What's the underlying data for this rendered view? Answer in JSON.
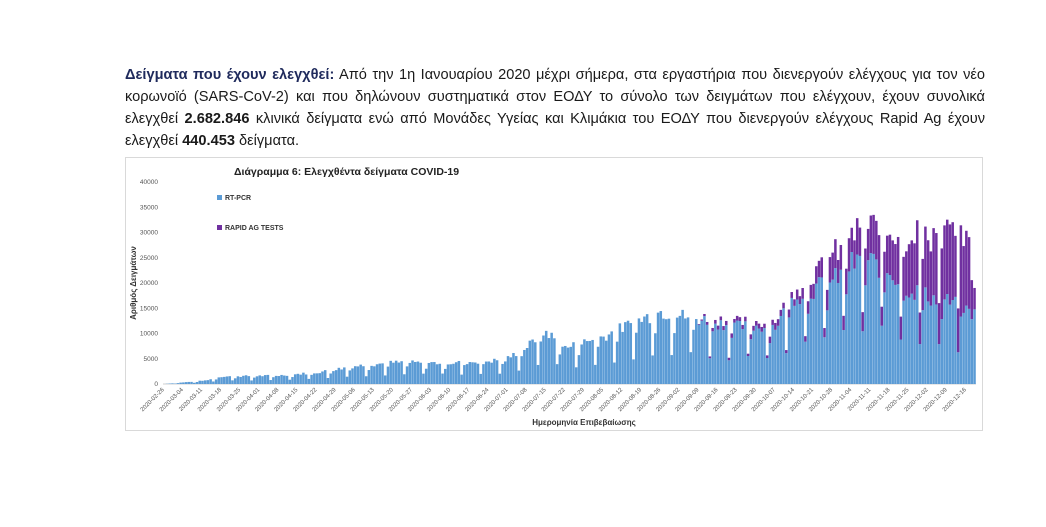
{
  "paragraph": {
    "lead": "Δείγματα που έχουν ελεγχθεί:",
    "text1": " Από την 1η Ιανουαρίου 2020 μέχρι σήμερα, στα εργαστήρια που διενεργούν ελέγχους για τον νέο κορωνοϊό (SARS-CoV-2) και που δηλώνουν συστηματικά στον ΕΟΔΥ το σύνολο των δειγμάτων που ελέγχουν, έχουν συνολικά ελεγχθεί ",
    "total_pcr": "2.682.846",
    "text2": " κλινικά δείγματα ενώ από Μονάδες Υγείας και Κλιμάκια του ΕΟΔΥ που διενεργούν ελέγχους Rapid Ag έχουν ελεγχθεί ",
    "total_rapid": "440.453",
    "text3": " δείγματα."
  },
  "colors": {
    "pcr": "#5b9bd5",
    "rapid": "#7030a0"
  },
  "chart_data": {
    "type": "bar",
    "stacked": true,
    "title": "Διάγραμμα 6: Ελεγχθέντα δείγματα COVID-19",
    "xlabel": "Ημερομηνία Επιβεβαίωσης",
    "ylabel": "Αριθμός Δειγμάτων",
    "ylim": [
      0,
      40000
    ],
    "yticks": [
      0,
      5000,
      10000,
      15000,
      20000,
      25000,
      30000,
      35000,
      40000
    ],
    "legend_position": "top-left",
    "x_start": "2020-02-26",
    "x_end": "2020-12-19",
    "xticks": [
      "2020-02-26",
      "2020-03-04",
      "2020-03-11",
      "2020-03-18",
      "2020-03-25",
      "2020-04-01",
      "2020-04-08",
      "2020-04-15",
      "2020-04-22",
      "2020-04-29",
      "2020-05-06",
      "2020-05-13",
      "2020-05-20",
      "2020-05-27",
      "2020-06-03",
      "2020-06-10",
      "2020-06-17",
      "2020-06-24",
      "2020-07-01",
      "2020-07-08",
      "2020-07-15",
      "2020-07-22",
      "2020-07-29",
      "2020-08-05",
      "2020-08-12",
      "2020-08-19",
      "2020-08-26",
      "2020-09-02",
      "2020-09-09",
      "2020-09-16",
      "2020-09-23",
      "2020-09-30",
      "2020-10-07",
      "2020-10-14",
      "2020-10-21",
      "2020-10-28",
      "2020-11-04",
      "2020-11-11",
      "2020-11-18",
      "2020-11-25",
      "2020-12-02",
      "2020-12-09",
      "2020-12-16"
    ],
    "series": [
      {
        "name": "RT-PCR",
        "key": "pcr",
        "anchors": [
          [
            "2020-02-26",
            0
          ],
          [
            "2020-03-08",
            500
          ],
          [
            "2020-03-12",
            700
          ],
          [
            "2020-03-18",
            1500
          ],
          [
            "2020-04-08",
            1700
          ],
          [
            "2020-04-22",
            2300
          ],
          [
            "2020-05-06",
            3600
          ],
          [
            "2020-05-20",
            4300
          ],
          [
            "2020-06-10",
            4200
          ],
          [
            "2020-06-30",
            4800
          ],
          [
            "2020-07-08",
            7500
          ],
          [
            "2020-07-15",
            10500
          ],
          [
            "2020-07-22",
            7200
          ],
          [
            "2020-08-05",
            9500
          ],
          [
            "2020-08-19",
            13000
          ],
          [
            "2020-08-26",
            14500
          ],
          [
            "2020-09-09",
            13000
          ],
          [
            "2020-09-23",
            11500
          ],
          [
            "2020-10-07",
            11500
          ],
          [
            "2020-10-14",
            17500
          ],
          [
            "2020-10-21",
            19000
          ],
          [
            "2020-10-28",
            20500
          ],
          [
            "2020-11-04",
            24000
          ],
          [
            "2020-11-11",
            24500
          ],
          [
            "2020-11-18",
            22500
          ],
          [
            "2020-11-25",
            19000
          ],
          [
            "2020-12-02",
            17500
          ],
          [
            "2020-12-09",
            16500
          ],
          [
            "2020-12-19",
            14000
          ]
        ]
      },
      {
        "name": "RAPID AG TESTS",
        "key": "rapid",
        "anchors": [
          [
            "2020-02-26",
            0
          ],
          [
            "2020-09-08",
            0
          ],
          [
            "2020-09-14",
            800
          ],
          [
            "2020-09-30",
            900
          ],
          [
            "2020-10-14",
            1500
          ],
          [
            "2020-10-21",
            3000
          ],
          [
            "2020-10-28",
            5000
          ],
          [
            "2020-11-04",
            6000
          ],
          [
            "2020-11-11",
            7000
          ],
          [
            "2020-11-18",
            9000
          ],
          [
            "2020-11-25",
            10500
          ],
          [
            "2020-12-02",
            12500
          ],
          [
            "2020-12-09",
            14000
          ],
          [
            "2020-12-16",
            16500
          ],
          [
            "2020-12-19",
            5000
          ]
        ]
      }
    ]
  }
}
